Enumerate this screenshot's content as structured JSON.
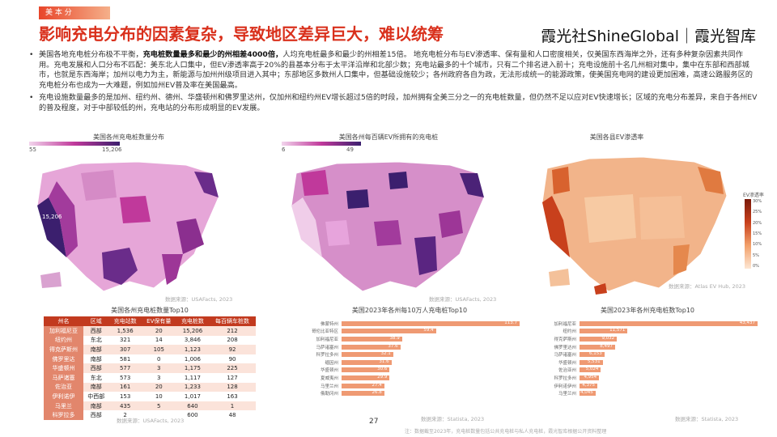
{
  "header": {
    "tag": "美 本 分",
    "title": "影响充电分布的因素复杂，导致地区差异巨大，难以统筹",
    "brand": "霞光社ShineGlobal｜霞光智库"
  },
  "paragraphs": [
    {
      "lead": "美国各地充电桩分布极不平衡，",
      "strong": "充电桩数量最多和最少的州相差4000倍，",
      "rest": "人均充电桩最多和最少的州相差15倍。 地充电桩分布与EV渗透率、保有量和人口密度相关，仅美国东西海岸之外，还有多种复杂因素共同作用。充电发展和人口分布不匹配：美东北人口集中，但EV渗透率高于20%的县基本分布于太平洋沿岸和北部少数；充电站最多的十个城市，只有二个排名进入前十；充电设施前十名几州相对集中，集中在东部和西部城市，也就是东西海岸；加州以电力为主，新能源与加州州级项目进入其中；东部地区多数州人口集中，但基础设施较少；各州政府各自为政，无法形成统一的能源政策，使美国充电网的建设更加困难，高速公路服务区的充电桩分布也成为一大难题，例如加州EV普及率在美国最高。"
    },
    {
      "lead": "",
      "strong": "",
      "rest": "充电设施数量最多的是加州、纽约州、德州、华盛顿州和佛罗里达州，仅加州和纽约州EV增长超过5倍的时段，加州拥有全美三分之一的充电桩数量，但仍然不足以应对EV快速增长；区域的充电分布差异，来自于各州EV的普及程度，对于中部较低的州，充电站的分布形成明显的EV发展。"
    }
  ],
  "maps": [
    {
      "title": "美国各州充电桩数量分布",
      "legend_min": "55",
      "legend_max": "15,206",
      "callout": "15,206",
      "source": "数据来源：USAFacts, 2023"
    },
    {
      "title": "美国各州每百辆EV所拥有的充电桩",
      "legend_min": "6",
      "legend_max": "49",
      "source": "数据来源：USAFacts, 2023"
    },
    {
      "title": "美国各县EV渗透率",
      "legend_title": "EV渗透率",
      "legend_ticks": [
        "30%",
        "25%",
        "20%",
        "15%",
        "10%",
        "5%",
        "0%"
      ],
      "source": "数据来源：Atlas EV Hub, 2023"
    }
  ],
  "table": {
    "title": "美国各州充电桩数量Top10",
    "headers": [
      "州名",
      "区域",
      "充电站数",
      "EV保有量",
      "充电桩数",
      "每百辆车桩数"
    ],
    "rows": [
      [
        "加利福尼亚",
        "西部",
        "1,536",
        "20",
        "15,206",
        "212"
      ],
      [
        "纽约州",
        "东北",
        "321",
        "14",
        "3,846",
        "208"
      ],
      [
        "得克萨斯州",
        "南部",
        "307",
        "105",
        "1,123",
        "92"
      ],
      [
        "佛罗里达",
        "南部",
        "581",
        "0",
        "1,006",
        "90"
      ],
      [
        "华盛顿州",
        "西部",
        "577",
        "3",
        "1,175",
        "225"
      ],
      [
        "马萨诸塞",
        "东北",
        "573",
        "3",
        "1,117",
        "127"
      ],
      [
        "佐治亚",
        "南部",
        "161",
        "20",
        "1,233",
        "128"
      ],
      [
        "伊利诺伊",
        "中西部",
        "153",
        "10",
        "1,017",
        "163"
      ],
      [
        "马里兰",
        "南部",
        "435",
        "5",
        "640",
        "1"
      ],
      [
        "科罗拉多",
        "西部",
        "2",
        "",
        "600",
        "48"
      ]
    ],
    "source": "数据来源：USAFacts, 2023"
  },
  "bars1": {
    "title": "美国2023年各州每10万人充电桩Top10",
    "items": [
      {
        "label": "佛蒙特州",
        "value": "113.7",
        "frac": 1.0
      },
      {
        "label": "哥伦比亚特区",
        "value": "59.4",
        "frac": 0.53
      },
      {
        "label": "加利福尼亚",
        "value": "38.9",
        "frac": 0.34
      },
      {
        "label": "马萨诸塞州",
        "value": "37.6",
        "frac": 0.33
      },
      {
        "label": "科罗拉多州",
        "value": "32.1",
        "frac": 0.29
      },
      {
        "label": "缅因州",
        "value": "31.6",
        "frac": 0.28
      },
      {
        "label": "华盛顿州",
        "value": "30.6",
        "frac": 0.27
      },
      {
        "label": "夏威夷州",
        "value": "29.9",
        "frac": 0.27
      },
      {
        "label": "马里兰州",
        "value": "27.4",
        "frac": 0.24
      },
      {
        "label": "俄勒冈州",
        "value": "26.8",
        "frac": 0.24
      }
    ],
    "source": "数据来源：Statista, 2023"
  },
  "bars2": {
    "title": "美国2023年各州充电桩数Top10",
    "items": [
      {
        "label": "加利福尼亚",
        "value": "43,437",
        "frac": 1.0
      },
      {
        "label": "纽约州",
        "value": "11,571",
        "frac": 0.27
      },
      {
        "label": "得克萨斯州",
        "value": "9,032",
        "frac": 0.21
      },
      {
        "label": "佛罗里达州",
        "value": "8,497",
        "frac": 0.2
      },
      {
        "label": "马萨诸塞州",
        "value": "6,153",
        "frac": 0.14
      },
      {
        "label": "华盛顿州",
        "value": "5,531",
        "frac": 0.13
      },
      {
        "label": "佐治亚州",
        "value": "5,024",
        "frac": 0.12
      },
      {
        "label": "科罗拉多州",
        "value": "4,954",
        "frac": 0.11
      },
      {
        "label": "伊利诺伊州",
        "value": "4,375",
        "frac": 0.1
      },
      {
        "label": "马里兰州",
        "value": "4,045",
        "frac": 0.09
      }
    ],
    "source": "数据来源：Statista, 2023"
  },
  "footer": {
    "page": "27",
    "note": "注：数据截至2023年，充电桩数量包括公共充电桩与私人充电桩，霞光智库根据公开资料整理"
  },
  "colors": {
    "accent": "#d9301c",
    "purple_dark": "#3b1f6e",
    "magenta": "#c0399b",
    "orange": "#ef9a73"
  }
}
